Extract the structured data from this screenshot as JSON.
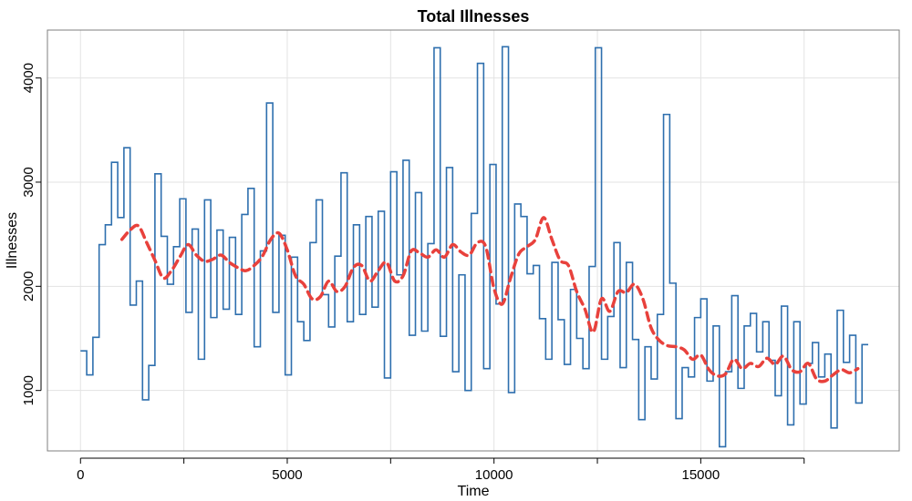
{
  "chart_data": {
    "type": "line",
    "title": "Total Illnesses",
    "xlabel": "Time",
    "ylabel": "Illnesses",
    "xlim": [
      -800,
      19800
    ],
    "ylim": [
      420,
      4460
    ],
    "xticks": [
      0,
      5000,
      10000,
      15000
    ],
    "xticks_minor": [
      2500,
      7500,
      12500,
      17500
    ],
    "yticks": [
      1000,
      2000,
      3000,
      4000
    ],
    "grid": true,
    "colors": {
      "series": "#2e6fae",
      "smooth": "#e8413c",
      "grid": "#e3e3e3",
      "frame": "#7f7f7f"
    },
    "series": [
      {
        "style": "step",
        "x": [
          0,
          150,
          300,
          450,
          600,
          750,
          900,
          1050,
          1200,
          1350,
          1500,
          1650,
          1800,
          1950,
          2100,
          2250,
          2400,
          2550,
          2700,
          2850,
          3000,
          3150,
          3300,
          3450,
          3600,
          3750,
          3900,
          4050,
          4200,
          4350,
          4500,
          4650,
          4800,
          4950,
          5100,
          5250,
          5400,
          5550,
          5700,
          5850,
          6000,
          6150,
          6300,
          6450,
          6600,
          6750,
          6900,
          7050,
          7200,
          7350,
          7500,
          7650,
          7800,
          7950,
          8100,
          8250,
          8400,
          8550,
          8700,
          8850,
          9000,
          9150,
          9300,
          9450,
          9600,
          9750,
          9900,
          10050,
          10200,
          10350,
          10500,
          10650,
          10800,
          10950,
          11100,
          11250,
          11400,
          11550,
          11700,
          11850,
          12000,
          12150,
          12300,
          12450,
          12600,
          12750,
          12900,
          13050,
          13200,
          13350,
          13500,
          13650,
          13800,
          13950,
          14100,
          14250,
          14400,
          14550,
          14700,
          14850,
          15000,
          15150,
          15300,
          15450,
          15600,
          15750,
          15900,
          16050,
          16200,
          16350,
          16500,
          16650,
          16800,
          16950,
          17100,
          17250,
          17400,
          17550,
          17700,
          17850,
          18000,
          18150,
          18300,
          18450,
          18600,
          18750,
          18900
        ],
        "values": [
          1380,
          1150,
          1510,
          2400,
          2590,
          3190,
          2660,
          3330,
          1820,
          2050,
          910,
          1240,
          3080,
          2480,
          2020,
          2380,
          2840,
          1750,
          2550,
          1300,
          2830,
          1700,
          2540,
          1780,
          2470,
          1730,
          2690,
          2940,
          1420,
          2340,
          3760,
          1750,
          2490,
          1150,
          2280,
          1660,
          1480,
          2420,
          2830,
          1920,
          1610,
          2290,
          3090,
          1660,
          2590,
          1730,
          2670,
          1800,
          2720,
          1120,
          3100,
          2110,
          3210,
          1530,
          2900,
          1570,
          2410,
          4290,
          1520,
          3140,
          1180,
          2110,
          1000,
          2700,
          4140,
          1210,
          3170,
          1830,
          4300,
          980,
          2790,
          2670,
          2120,
          2200,
          1690,
          1300,
          2230,
          1680,
          1250,
          1970,
          1500,
          1210,
          2190,
          4290,
          1300,
          1710,
          2420,
          1220,
          2230,
          1490,
          720,
          1420,
          1110,
          1730,
          3650,
          2030,
          730,
          1220,
          1130,
          1700,
          1880,
          1090,
          1620,
          460,
          1180,
          1910,
          1020,
          1620,
          1740,
          1370,
          1660,
          1290,
          950,
          1810,
          670,
          1660,
          870,
          1260,
          1460,
          1130,
          1350,
          640,
          1770,
          1270,
          1530,
          880,
          1440
        ]
      },
      {
        "style": "dashed-smooth",
        "x": [
          1000,
          1200,
          1400,
          1600,
          1800,
          2000,
          2200,
          2400,
          2600,
          2800,
          3000,
          3200,
          3400,
          3600,
          3800,
          4000,
          4200,
          4400,
          4600,
          4800,
          5000,
          5200,
          5400,
          5600,
          5800,
          6000,
          6200,
          6400,
          6600,
          6800,
          7000,
          7200,
          7400,
          7600,
          7800,
          8000,
          8200,
          8400,
          8600,
          8800,
          9000,
          9200,
          9400,
          9600,
          9800,
          10000,
          10200,
          10400,
          10600,
          10800,
          11000,
          11200,
          11400,
          11600,
          11800,
          12000,
          12200,
          12400,
          12600,
          12800,
          13000,
          13200,
          13400,
          13600,
          13800,
          14000,
          14200,
          14400,
          14600,
          14800,
          15000,
          15200,
          15400,
          15600,
          15800,
          16000,
          16200,
          16400,
          16600,
          16800,
          17000,
          17200,
          17400,
          17600,
          17800,
          18000,
          18200,
          18400,
          18600,
          18800
        ],
        "values": [
          2450,
          2540,
          2580,
          2420,
          2250,
          2080,
          2150,
          2280,
          2400,
          2300,
          2240,
          2260,
          2300,
          2230,
          2180,
          2150,
          2200,
          2290,
          2450,
          2510,
          2350,
          2100,
          2020,
          1880,
          1900,
          2050,
          1950,
          2000,
          2180,
          2200,
          2050,
          2150,
          2230,
          2050,
          2100,
          2340,
          2320,
          2280,
          2350,
          2280,
          2400,
          2330,
          2300,
          2420,
          2380,
          1980,
          1830,
          2080,
          2310,
          2380,
          2450,
          2660,
          2450,
          2250,
          2200,
          1950,
          1780,
          1560,
          1880,
          1760,
          1950,
          1940,
          2020,
          1880,
          1600,
          1480,
          1430,
          1420,
          1390,
          1300,
          1340,
          1200,
          1140,
          1160,
          1300,
          1210,
          1260,
          1230,
          1310,
          1250,
          1330,
          1200,
          1180,
          1260,
          1110,
          1090,
          1150,
          1200,
          1170,
          1210
        ]
      }
    ]
  }
}
